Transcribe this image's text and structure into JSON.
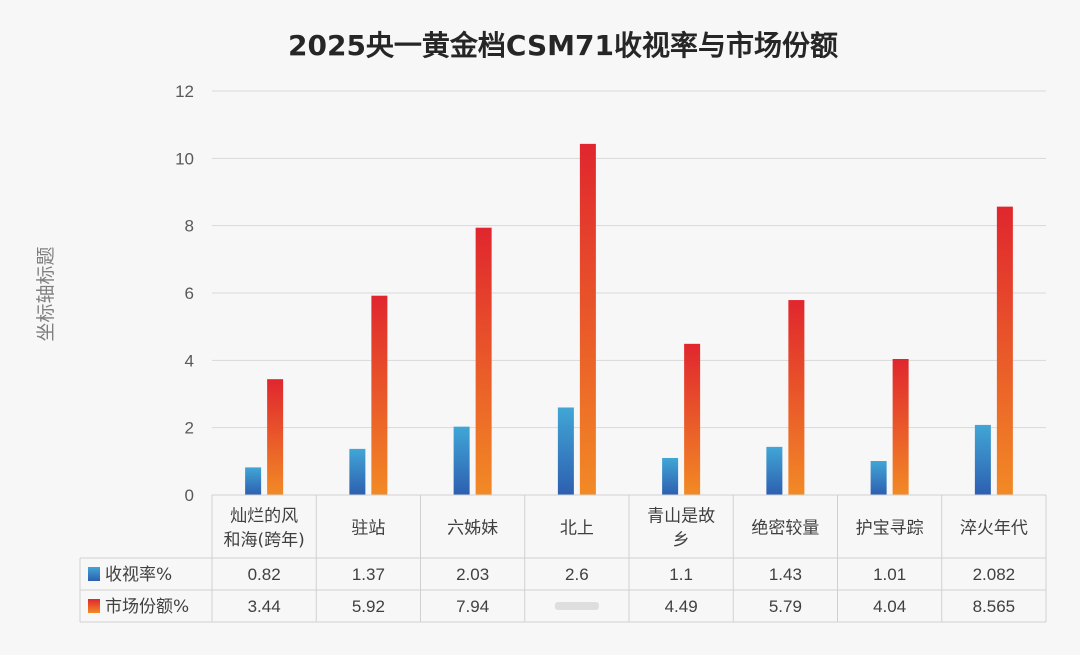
{
  "chart_data": {
    "type": "bar",
    "title": "2025央一黄金档CSM71收视率与市场份额",
    "ylabel": "坐标轴标题",
    "xlabel": "",
    "ylim": [
      0,
      12
    ],
    "yticks": [
      0,
      2,
      4,
      6,
      8,
      10,
      12
    ],
    "grid": true,
    "legend": "data-table",
    "categories": [
      [
        "灿烂的风",
        "和海(跨年)"
      ],
      [
        "驻站"
      ],
      [
        "六姊妹"
      ],
      [
        "北上"
      ],
      [
        "青山是故",
        "乡"
      ],
      [
        "绝密较量"
      ],
      [
        "护宝寻踪"
      ],
      [
        "淬火年代"
      ]
    ],
    "series": [
      {
        "name": "收视率%",
        "values": [
          0.82,
          1.37,
          2.03,
          2.6,
          1.1,
          1.43,
          1.01,
          2.082
        ],
        "labels": [
          "0.82",
          "1.37",
          "2.03",
          "2.6",
          "1.1",
          "1.43",
          "1.01",
          "2.082"
        ],
        "color_top": "#41a6d6",
        "color_bottom": "#2d5fb0"
      },
      {
        "name": "市场份额%",
        "values": [
          3.44,
          5.92,
          7.94,
          10.43,
          4.49,
          5.79,
          4.04,
          8.565
        ],
        "labels": [
          "3.44",
          "5.92",
          "7.94",
          "",
          "4.49",
          "5.79",
          "4.04",
          "8.565"
        ],
        "color_top": "#e0262e",
        "color_bottom": "#f28a25"
      }
    ]
  },
  "colors": {
    "grid": "#d9d9d9",
    "table_border": "#d0d0d0",
    "background": "#f7f7f7"
  }
}
